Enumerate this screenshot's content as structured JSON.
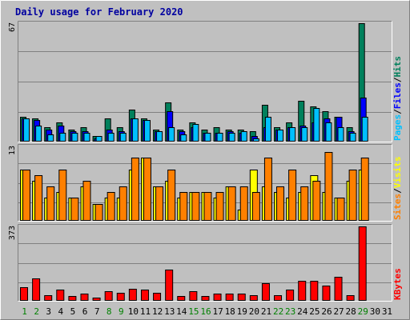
{
  "chart_data": {
    "type": "bar",
    "title": "Daily usage for February 2020",
    "categories": [
      "1",
      "2",
      "3",
      "4",
      "5",
      "6",
      "7",
      "8",
      "9",
      "10",
      "11",
      "12",
      "13",
      "14",
      "15",
      "16",
      "17",
      "18",
      "19",
      "20",
      "21",
      "22",
      "23",
      "24",
      "25",
      "26",
      "27",
      "28",
      "29",
      "30",
      "31"
    ],
    "weekend_days": [
      "1",
      "2",
      "8",
      "9",
      "15",
      "16",
      "22",
      "23",
      "29"
    ],
    "panels": [
      {
        "name": "top",
        "max_label": "67",
        "ymax": 67,
        "legend": [
          "Pages",
          "Files",
          "Hits"
        ],
        "series": [
          {
            "name": "Hits",
            "color": "#00805c",
            "values": [
              14,
              13,
              8,
              11,
              7,
              8,
              3,
              13,
              8,
              18,
              13,
              7,
              22,
              7,
              11,
              7,
              8,
              7,
              7,
              6,
              21,
              8,
              11,
              23,
              20,
              17,
              14,
              8,
              67,
              0,
              0
            ]
          },
          {
            "name": "Files",
            "color": "#0000ff",
            "values": [
              13,
              12,
              7,
              9,
              6,
              6,
              2,
              7,
              6,
              13,
              12,
              6,
              17,
              6,
              8,
              5,
              5,
              6,
              5,
              3,
              8,
              7,
              8,
              9,
              11,
              13,
              14,
              6,
              25,
              0,
              0
            ]
          },
          {
            "name": "Pages",
            "color": "#00c0ff",
            "values": [
              13,
              9,
              4,
              5,
              5,
              5,
              3,
              5,
              5,
              13,
              12,
              6,
              8,
              4,
              10,
              5,
              5,
              5,
              6,
              2,
              14,
              7,
              8,
              8,
              19,
              11,
              8,
              5,
              14,
              0,
              0
            ]
          }
        ]
      },
      {
        "name": "middle",
        "max_label": "13",
        "ymax": 13,
        "legend": [
          "Sites",
          "Visits"
        ],
        "series": [
          {
            "name": "Visits",
            "color": "#ffff00",
            "values": [
              9,
              7,
              4,
              5,
              4,
              6,
              3,
              4,
              4,
              9,
              11,
              6,
              7,
              4,
              5,
              5,
              4,
              6,
              2,
              9,
              6,
              5,
              4,
              5,
              8,
              5,
              4,
              7,
              9,
              0,
              0
            ]
          },
          {
            "name": "Sites",
            "color": "#ff8000",
            "values": [
              9,
              8,
              6,
              9,
              4,
              7,
              3,
              5,
              6,
              11,
              11,
              6,
              9,
              5,
              5,
              5,
              5,
              6,
              6,
              5,
              11,
              6,
              9,
              6,
              7,
              12,
              4,
              9,
              11,
              0,
              0
            ]
          }
        ]
      },
      {
        "name": "bottom",
        "max_label": "373",
        "ymax": 373,
        "legend": [
          "KBytes"
        ],
        "series": [
          {
            "name": "KBytes",
            "color": "#ff0000",
            "values": [
              70,
              112,
              30,
              58,
              25,
              38,
              15,
              50,
              40,
              62,
              55,
              40,
              155,
              25,
              50,
              25,
              35,
              35,
              35,
              28,
              88,
              30,
              55,
              100,
              100,
              76,
              122,
              30,
              373,
              0,
              0
            ]
          }
        ]
      }
    ]
  }
}
